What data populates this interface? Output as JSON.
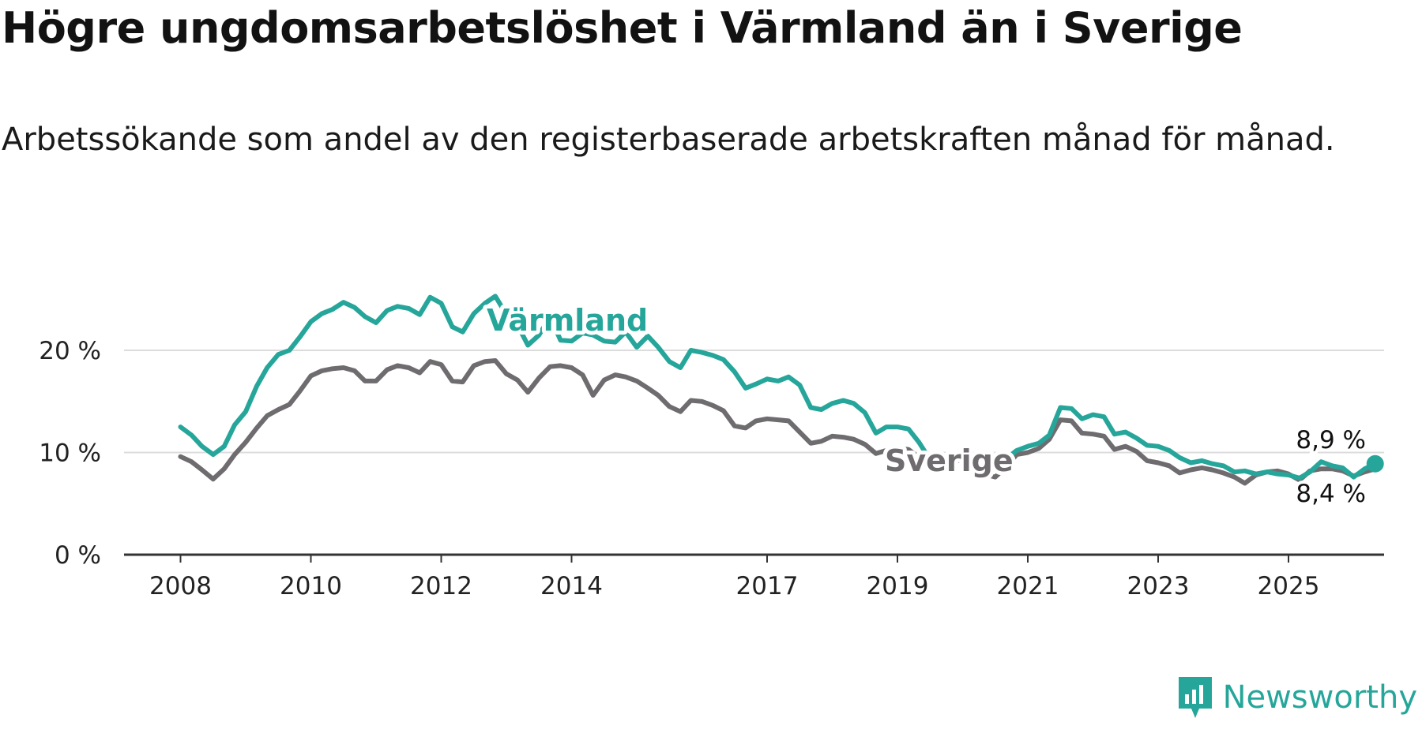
{
  "title": "Högre ungdomsarbetslöshet i Värmland än i Sverige",
  "subtitle": "Arbetssökande som andel av den registerbaserade arbetskraften månad för månad.",
  "brand": {
    "name": "Newsworthy",
    "icon": "newsworthy-logo-icon",
    "color": "#26a69a"
  },
  "chart_data": {
    "type": "line",
    "title": "Högre ungdomsarbetslöshet i Värmland än i Sverige",
    "subtitle": "Arbetssökande som andel av den registerbaserade arbetskraften månad för månad.",
    "xlim": [
      2008,
      2026.5
    ],
    "ylim": [
      0,
      27
    ],
    "x_ticks": [
      2008,
      2010,
      2012,
      2014,
      2017,
      2019,
      2021,
      2023,
      2025
    ],
    "x_tick_labels": [
      "2008",
      "2010",
      "2012",
      "2014",
      "2017",
      "2019",
      "2021",
      "2023",
      "2025"
    ],
    "y_ticks": [
      0,
      10,
      20
    ],
    "y_tick_labels": [
      "0 %",
      "10 %",
      "20 %"
    ],
    "grid": "horizontal",
    "legend": "inline labels",
    "series": [
      {
        "name": "Värmland",
        "color": "#26a69a",
        "end_label": "8,9 %",
        "points": [
          [
            2008.0,
            12.5
          ],
          [
            2008.17,
            11.7
          ],
          [
            2008.33,
            10.6
          ],
          [
            2008.5,
            9.8
          ],
          [
            2008.67,
            10.6
          ],
          [
            2008.83,
            12.7
          ],
          [
            2009.0,
            14.0
          ],
          [
            2009.17,
            16.5
          ],
          [
            2009.33,
            18.3
          ],
          [
            2009.5,
            19.6
          ],
          [
            2009.67,
            20.0
          ],
          [
            2009.83,
            21.3
          ],
          [
            2010.0,
            22.8
          ],
          [
            2010.17,
            23.6
          ],
          [
            2010.33,
            24.0
          ],
          [
            2010.5,
            24.7
          ],
          [
            2010.67,
            24.2
          ],
          [
            2010.83,
            23.3
          ],
          [
            2011.0,
            22.7
          ],
          [
            2011.17,
            23.9
          ],
          [
            2011.33,
            24.3
          ],
          [
            2011.5,
            24.1
          ],
          [
            2011.67,
            23.5
          ],
          [
            2011.83,
            25.2
          ],
          [
            2012.0,
            24.6
          ],
          [
            2012.17,
            22.3
          ],
          [
            2012.33,
            21.8
          ],
          [
            2012.5,
            23.6
          ],
          [
            2012.67,
            24.6
          ],
          [
            2012.83,
            25.3
          ],
          [
            2013.0,
            23.5
          ],
          [
            2013.17,
            22.5
          ],
          [
            2013.33,
            20.5
          ],
          [
            2013.5,
            21.5
          ],
          [
            2013.67,
            23.3
          ],
          [
            2013.83,
            21.0
          ],
          [
            2014.0,
            20.9
          ],
          [
            2014.17,
            21.7
          ],
          [
            2014.33,
            21.5
          ],
          [
            2014.5,
            20.9
          ],
          [
            2014.67,
            20.8
          ],
          [
            2014.83,
            21.8
          ],
          [
            2015.0,
            20.3
          ],
          [
            2015.17,
            21.4
          ],
          [
            2015.33,
            20.3
          ],
          [
            2015.5,
            18.9
          ],
          [
            2015.67,
            18.3
          ],
          [
            2015.83,
            20.0
          ],
          [
            2016.0,
            19.8
          ],
          [
            2016.17,
            19.5
          ],
          [
            2016.33,
            19.1
          ],
          [
            2016.5,
            17.9
          ],
          [
            2016.67,
            16.3
          ],
          [
            2016.83,
            16.7
          ],
          [
            2017.0,
            17.2
          ],
          [
            2017.17,
            17.0
          ],
          [
            2017.33,
            17.4
          ],
          [
            2017.5,
            16.6
          ],
          [
            2017.67,
            14.4
          ],
          [
            2017.83,
            14.2
          ],
          [
            2018.0,
            14.8
          ],
          [
            2018.17,
            15.1
          ],
          [
            2018.33,
            14.8
          ],
          [
            2018.5,
            13.9
          ],
          [
            2018.67,
            11.9
          ],
          [
            2018.83,
            12.5
          ],
          [
            2019.0,
            12.5
          ],
          [
            2019.17,
            12.3
          ],
          [
            2019.33,
            11.0
          ],
          [
            2019.5,
            9.3
          ],
          [
            2019.67,
            9.1
          ],
          [
            2019.83,
            9.5
          ],
          [
            2020.0,
            9.6
          ],
          [
            2020.17,
            9.3
          ],
          [
            2020.33,
            8.6
          ],
          [
            2020.5,
            8.4
          ],
          [
            2020.67,
            9.4
          ],
          [
            2020.83,
            10.2
          ],
          [
            2021.0,
            10.6
          ],
          [
            2021.17,
            10.9
          ],
          [
            2021.33,
            11.7
          ],
          [
            2021.5,
            14.4
          ],
          [
            2021.67,
            14.3
          ],
          [
            2021.83,
            13.3
          ],
          [
            2022.0,
            13.7
          ],
          [
            2022.17,
            13.5
          ],
          [
            2022.33,
            11.8
          ],
          [
            2022.5,
            12.0
          ],
          [
            2022.67,
            11.4
          ],
          [
            2022.83,
            10.7
          ],
          [
            2023.0,
            10.6
          ],
          [
            2023.17,
            10.2
          ],
          [
            2023.33,
            9.5
          ],
          [
            2023.5,
            9.0
          ],
          [
            2023.67,
            9.2
          ],
          [
            2023.83,
            8.9
          ],
          [
            2024.0,
            8.7
          ],
          [
            2024.17,
            8.1
          ],
          [
            2024.33,
            8.2
          ],
          [
            2024.5,
            7.9
          ],
          [
            2024.67,
            8.1
          ],
          [
            2024.83,
            7.9
          ],
          [
            2025.0,
            7.8
          ],
          [
            2025.17,
            7.5
          ],
          [
            2025.33,
            8.1
          ],
          [
            2025.5,
            9.1
          ],
          [
            2025.67,
            8.7
          ],
          [
            2025.83,
            8.5
          ],
          [
            2026.0,
            7.6
          ],
          [
            2026.17,
            8.4
          ],
          [
            2026.33,
            8.9
          ]
        ]
      },
      {
        "name": "Sverige",
        "color": "#6f6c70",
        "end_label": "8,4 %",
        "points": [
          [
            2008.0,
            9.6
          ],
          [
            2008.17,
            9.1
          ],
          [
            2008.33,
            8.3
          ],
          [
            2008.5,
            7.4
          ],
          [
            2008.67,
            8.4
          ],
          [
            2008.83,
            9.8
          ],
          [
            2009.0,
            11.0
          ],
          [
            2009.17,
            12.4
          ],
          [
            2009.33,
            13.6
          ],
          [
            2009.5,
            14.2
          ],
          [
            2009.67,
            14.7
          ],
          [
            2009.83,
            16.0
          ],
          [
            2010.0,
            17.5
          ],
          [
            2010.17,
            18.0
          ],
          [
            2010.33,
            18.2
          ],
          [
            2010.5,
            18.3
          ],
          [
            2010.67,
            18.0
          ],
          [
            2010.83,
            17.0
          ],
          [
            2011.0,
            17.0
          ],
          [
            2011.17,
            18.1
          ],
          [
            2011.33,
            18.5
          ],
          [
            2011.5,
            18.3
          ],
          [
            2011.67,
            17.8
          ],
          [
            2011.83,
            18.9
          ],
          [
            2012.0,
            18.6
          ],
          [
            2012.17,
            17.0
          ],
          [
            2012.33,
            16.9
          ],
          [
            2012.5,
            18.5
          ],
          [
            2012.67,
            18.9
          ],
          [
            2012.83,
            19.0
          ],
          [
            2013.0,
            17.7
          ],
          [
            2013.17,
            17.1
          ],
          [
            2013.33,
            15.9
          ],
          [
            2013.5,
            17.3
          ],
          [
            2013.67,
            18.4
          ],
          [
            2013.83,
            18.5
          ],
          [
            2014.0,
            18.3
          ],
          [
            2014.17,
            17.6
          ],
          [
            2014.33,
            15.6
          ],
          [
            2014.5,
            17.1
          ],
          [
            2014.67,
            17.6
          ],
          [
            2014.83,
            17.4
          ],
          [
            2015.0,
            17.0
          ],
          [
            2015.17,
            16.3
          ],
          [
            2015.33,
            15.6
          ],
          [
            2015.5,
            14.5
          ],
          [
            2015.67,
            14.0
          ],
          [
            2015.83,
            15.1
          ],
          [
            2016.0,
            15.0
          ],
          [
            2016.17,
            14.6
          ],
          [
            2016.33,
            14.1
          ],
          [
            2016.5,
            12.6
          ],
          [
            2016.67,
            12.4
          ],
          [
            2016.83,
            13.1
          ],
          [
            2017.0,
            13.3
          ],
          [
            2017.17,
            13.2
          ],
          [
            2017.33,
            13.1
          ],
          [
            2017.5,
            12.0
          ],
          [
            2017.67,
            10.9
          ],
          [
            2017.83,
            11.1
          ],
          [
            2018.0,
            11.6
          ],
          [
            2018.17,
            11.5
          ],
          [
            2018.33,
            11.3
          ],
          [
            2018.5,
            10.8
          ],
          [
            2018.67,
            9.9
          ],
          [
            2018.83,
            10.2
          ],
          [
            2019.0,
            10.4
          ],
          [
            2019.17,
            10.3
          ],
          [
            2019.33,
            9.5
          ],
          [
            2019.5,
            8.6
          ],
          [
            2019.67,
            8.7
          ],
          [
            2019.83,
            9.1
          ],
          [
            2020.0,
            9.3
          ],
          [
            2020.17,
            9.0
          ],
          [
            2020.33,
            7.9
          ],
          [
            2020.5,
            7.6
          ],
          [
            2020.67,
            8.6
          ],
          [
            2020.83,
            9.8
          ],
          [
            2021.0,
            10.0
          ],
          [
            2021.17,
            10.4
          ],
          [
            2021.33,
            11.3
          ],
          [
            2021.5,
            13.2
          ],
          [
            2021.67,
            13.1
          ],
          [
            2021.83,
            11.9
          ],
          [
            2022.0,
            11.8
          ],
          [
            2022.17,
            11.6
          ],
          [
            2022.33,
            10.3
          ],
          [
            2022.5,
            10.6
          ],
          [
            2022.67,
            10.1
          ],
          [
            2022.83,
            9.2
          ],
          [
            2023.0,
            9.0
          ],
          [
            2023.17,
            8.7
          ],
          [
            2023.33,
            8.0
          ],
          [
            2023.5,
            8.3
          ],
          [
            2023.67,
            8.5
          ],
          [
            2023.83,
            8.3
          ],
          [
            2024.0,
            8.0
          ],
          [
            2024.17,
            7.6
          ],
          [
            2024.33,
            7.0
          ],
          [
            2024.5,
            7.8
          ],
          [
            2024.67,
            8.1
          ],
          [
            2024.83,
            8.2
          ],
          [
            2025.0,
            7.9
          ],
          [
            2025.17,
            7.3
          ],
          [
            2025.33,
            8.2
          ],
          [
            2025.5,
            8.4
          ],
          [
            2025.67,
            8.4
          ],
          [
            2025.83,
            8.2
          ],
          [
            2026.0,
            7.7
          ],
          [
            2026.17,
            8.1
          ],
          [
            2026.33,
            8.4
          ]
        ]
      }
    ]
  }
}
